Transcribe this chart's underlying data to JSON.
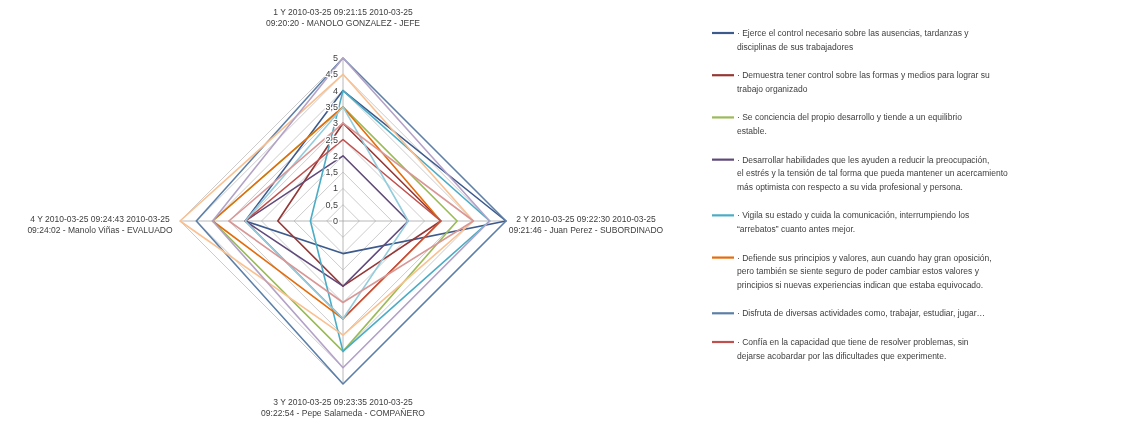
{
  "chart_data": {
    "type": "radar",
    "categories": [
      "1 Y 2010-03-25 09:21:15 2010-03-25 09:20:20 - MANOLO GONZALEZ - JEFE",
      "2 Y 2010-03-25 09:22:30 2010-03-25 09:21:46 - Juan Perez - SUBORDINADO",
      "3 Y 2010-03-25 09:23:35 2010-03-25 09:22:54 - Pepe Salameda - COMPAÑERO",
      "4 Y 2010-03-25 09:24:43 2010-03-25 09:24:02 - Manolo Viñas - EVALUADO"
    ],
    "ylim": [
      0,
      5
    ],
    "yticks": [
      0,
      {
        "value": 0.5,
        "label": "0,5"
      },
      1,
      {
        "value": 1.5,
        "label": "1,5"
      },
      2,
      {
        "value": 2.5,
        "label": "2,5"
      },
      3,
      {
        "value": 3.5,
        "label": "3,5"
      },
      4,
      {
        "value": 4.5,
        "label": "4,5"
      },
      5
    ],
    "grid": true,
    "legend": "right",
    "line_style": "solid",
    "marker": "none",
    "series": [
      {
        "name": "·      Ejerce el control necesario sobre las ausencias, tardanzas y disciplinas de sus trabajadores",
        "color": "#3c5a8c",
        "values": [
          4,
          5,
          1,
          3
        ]
      },
      {
        "name": "·      Demuestra tener control sobre las formas y medios para lograr su trabajo organizado",
        "color": "#953735",
        "values": [
          3,
          3,
          2,
          2
        ]
      },
      {
        "name": "·      Se conciencia  del propio desarrollo y tiende a un equilibrio estable.",
        "color": "#9bbb59",
        "values": [
          3.5,
          3.5,
          4,
          4
        ]
      },
      {
        "name": "·      Desarrollar habilidades que les ayuden a reducir la preocupación, el estrés y la tensión de tal forma que pueda mantener un acercamiento más optimista con respecto a su vida profesional y persona.",
        "color": "#5f497a",
        "values": [
          2,
          2,
          2,
          3
        ]
      },
      {
        "name": "·      Vigila su estado y cuida la comunicación, interrumpiendo los “arrebatos” cuanto antes mejor.",
        "color": "#4bacc6",
        "values": [
          4,
          4.5,
          4,
          1
        ]
      },
      {
        "name": "·      Defiende sus principios y valores, aun cuando hay gran oposición, pero también se siente seguro de poder cambiar estos valores y principios si nuevas experiencias indican que estaba equivocado.",
        "color": "#e46c0a",
        "values": [
          3.5,
          3,
          3,
          4
        ]
      },
      {
        "name": "·      Disfruta de diversas actividades como, trabajar, estudiar, jugar…",
        "color": "#5c7fa8",
        "values": [
          5,
          5,
          5,
          4.5
        ]
      },
      {
        "name": "·      Confía  en la capacidad que tiene de resolver problemas, sin dejarse acobardar por las dificultades que experimente.",
        "color": "#c0504d",
        "values": [
          2.5,
          3,
          3,
          3
        ]
      },
      {
        "color": "#fac090",
        "values": [
          4.5,
          4,
          3.5,
          5
        ]
      },
      {
        "color": "#b3a2c7",
        "values": [
          5,
          4.5,
          4.5,
          4
        ]
      },
      {
        "color": "#93cddd",
        "values": [
          3.5,
          2,
          3,
          3
        ]
      },
      {
        "color": "#d99694",
        "values": [
          3,
          4,
          2.5,
          3.5
        ]
      }
    ]
  }
}
